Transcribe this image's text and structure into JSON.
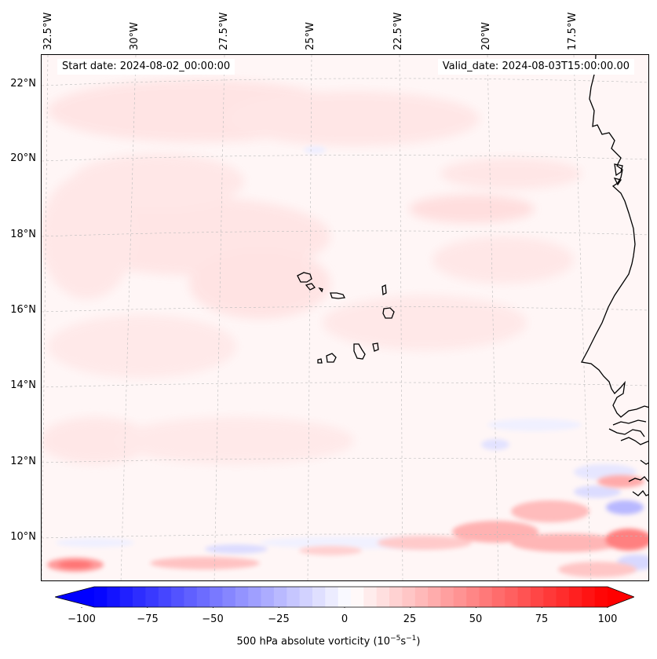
{
  "map": {
    "start_date": "Start date: 2024-08-02_00:00:00",
    "valid_date": "Valid_date: 2024-08-03T15:00:00.00",
    "longitude_labels": [
      "32.5°W",
      "30°W",
      "27.5°W",
      "25°W",
      "22.5°W",
      "20°W",
      "17.5°W"
    ],
    "latitude_labels": [
      "22°N",
      "20°N",
      "18°N",
      "16°N",
      "14°N",
      "12°N",
      "10°N"
    ],
    "land_color": "#000000",
    "gridline_color": "#bbbbbb",
    "field_background": "#fff5f5"
  },
  "colorbar": {
    "ticks": [
      "−100",
      "−75",
      "−50",
      "−25",
      "0",
      "25",
      "50",
      "75",
      "100"
    ],
    "min": -100,
    "max": 100,
    "negative_color": "#0000ff",
    "positive_color": "#ff0000",
    "label": "500 hPa absolute vorticity (10",
    "label_exp1": "−5",
    "label_mid": "s",
    "label_exp2": "−1",
    "label_end": ")"
  }
}
